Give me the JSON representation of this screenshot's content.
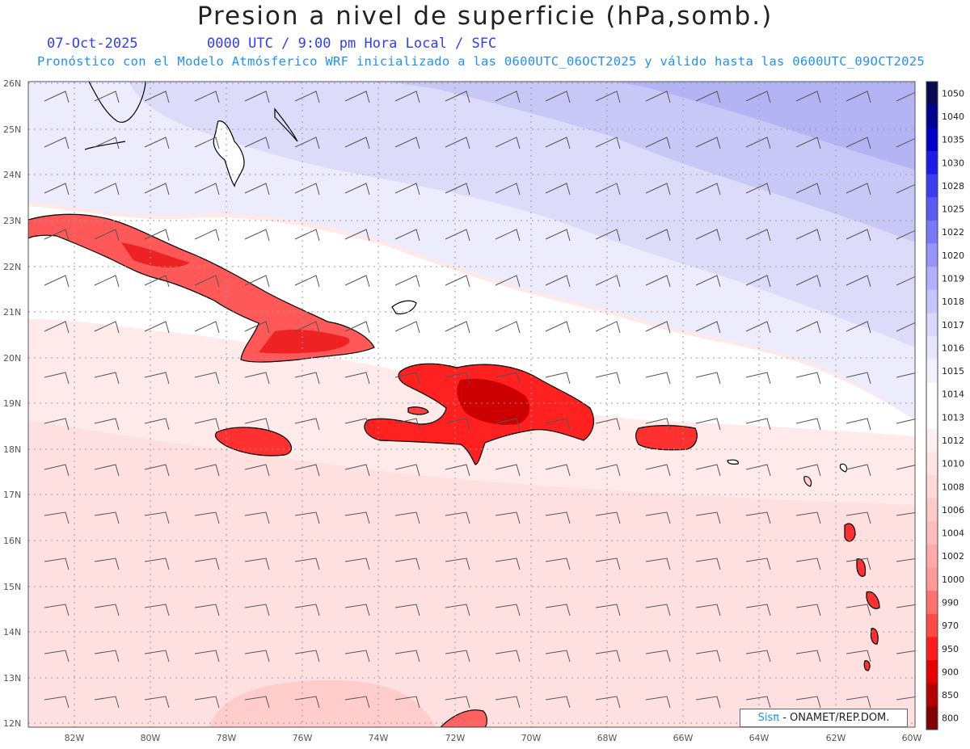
{
  "header": {
    "title": "Presion a nivel de superficie (hPa,somb.)",
    "date": "07-Oct-2025",
    "time": "0000 UTC / 9:00 pm Hora Local / SFC",
    "subtitle": "Pronóstico con el Modelo Atmósferico WRF inicializado a las 0600UTC_06OCT2025 y válido hasta las  0600UTC_09OCT2025"
  },
  "axes": {
    "lat_labels": [
      "26N",
      "25N",
      "24N",
      "23N",
      "22N",
      "21N",
      "20N",
      "19N",
      "18N",
      "17N",
      "16N",
      "15N",
      "14N",
      "13N",
      "12N"
    ],
    "lon_labels": [
      "82W",
      "80W",
      "78W",
      "76W",
      "74W",
      "72W",
      "70W",
      "68W",
      "66W",
      "64W",
      "62W",
      "60W"
    ]
  },
  "colorbar": {
    "labels": [
      "1050",
      "1040",
      "1035",
      "1030",
      "1028",
      "1025",
      "1022",
      "1020",
      "1019",
      "1018",
      "1017",
      "1016",
      "1015",
      "1014",
      "1013",
      "1012",
      "1010",
      "1008",
      "1006",
      "1004",
      "1002",
      "1000",
      "990",
      "970",
      "950",
      "900",
      "850",
      "800"
    ],
    "colors": [
      "#0a0a50",
      "#00008f",
      "#0000c8",
      "#1c1ce6",
      "#3c3cf0",
      "#5a5af5",
      "#7878f8",
      "#9696fa",
      "#b0b0fc",
      "#c6c6fd",
      "#d8d8fe",
      "#e6e6ff",
      "#f2f2ff",
      "#ffffff",
      "#ffffff",
      "#fff0f0",
      "#ffe4e4",
      "#ffd8d8",
      "#ffcaca",
      "#ffbcbc",
      "#ffaaaa",
      "#ff9898",
      "#ff7070",
      "#ff4848",
      "#ff1c1c",
      "#e60000",
      "#b40000",
      "#820000"
    ]
  },
  "credit": {
    "brand": "Sisπ",
    "text": " - ONAMET/REP.DOM."
  }
}
